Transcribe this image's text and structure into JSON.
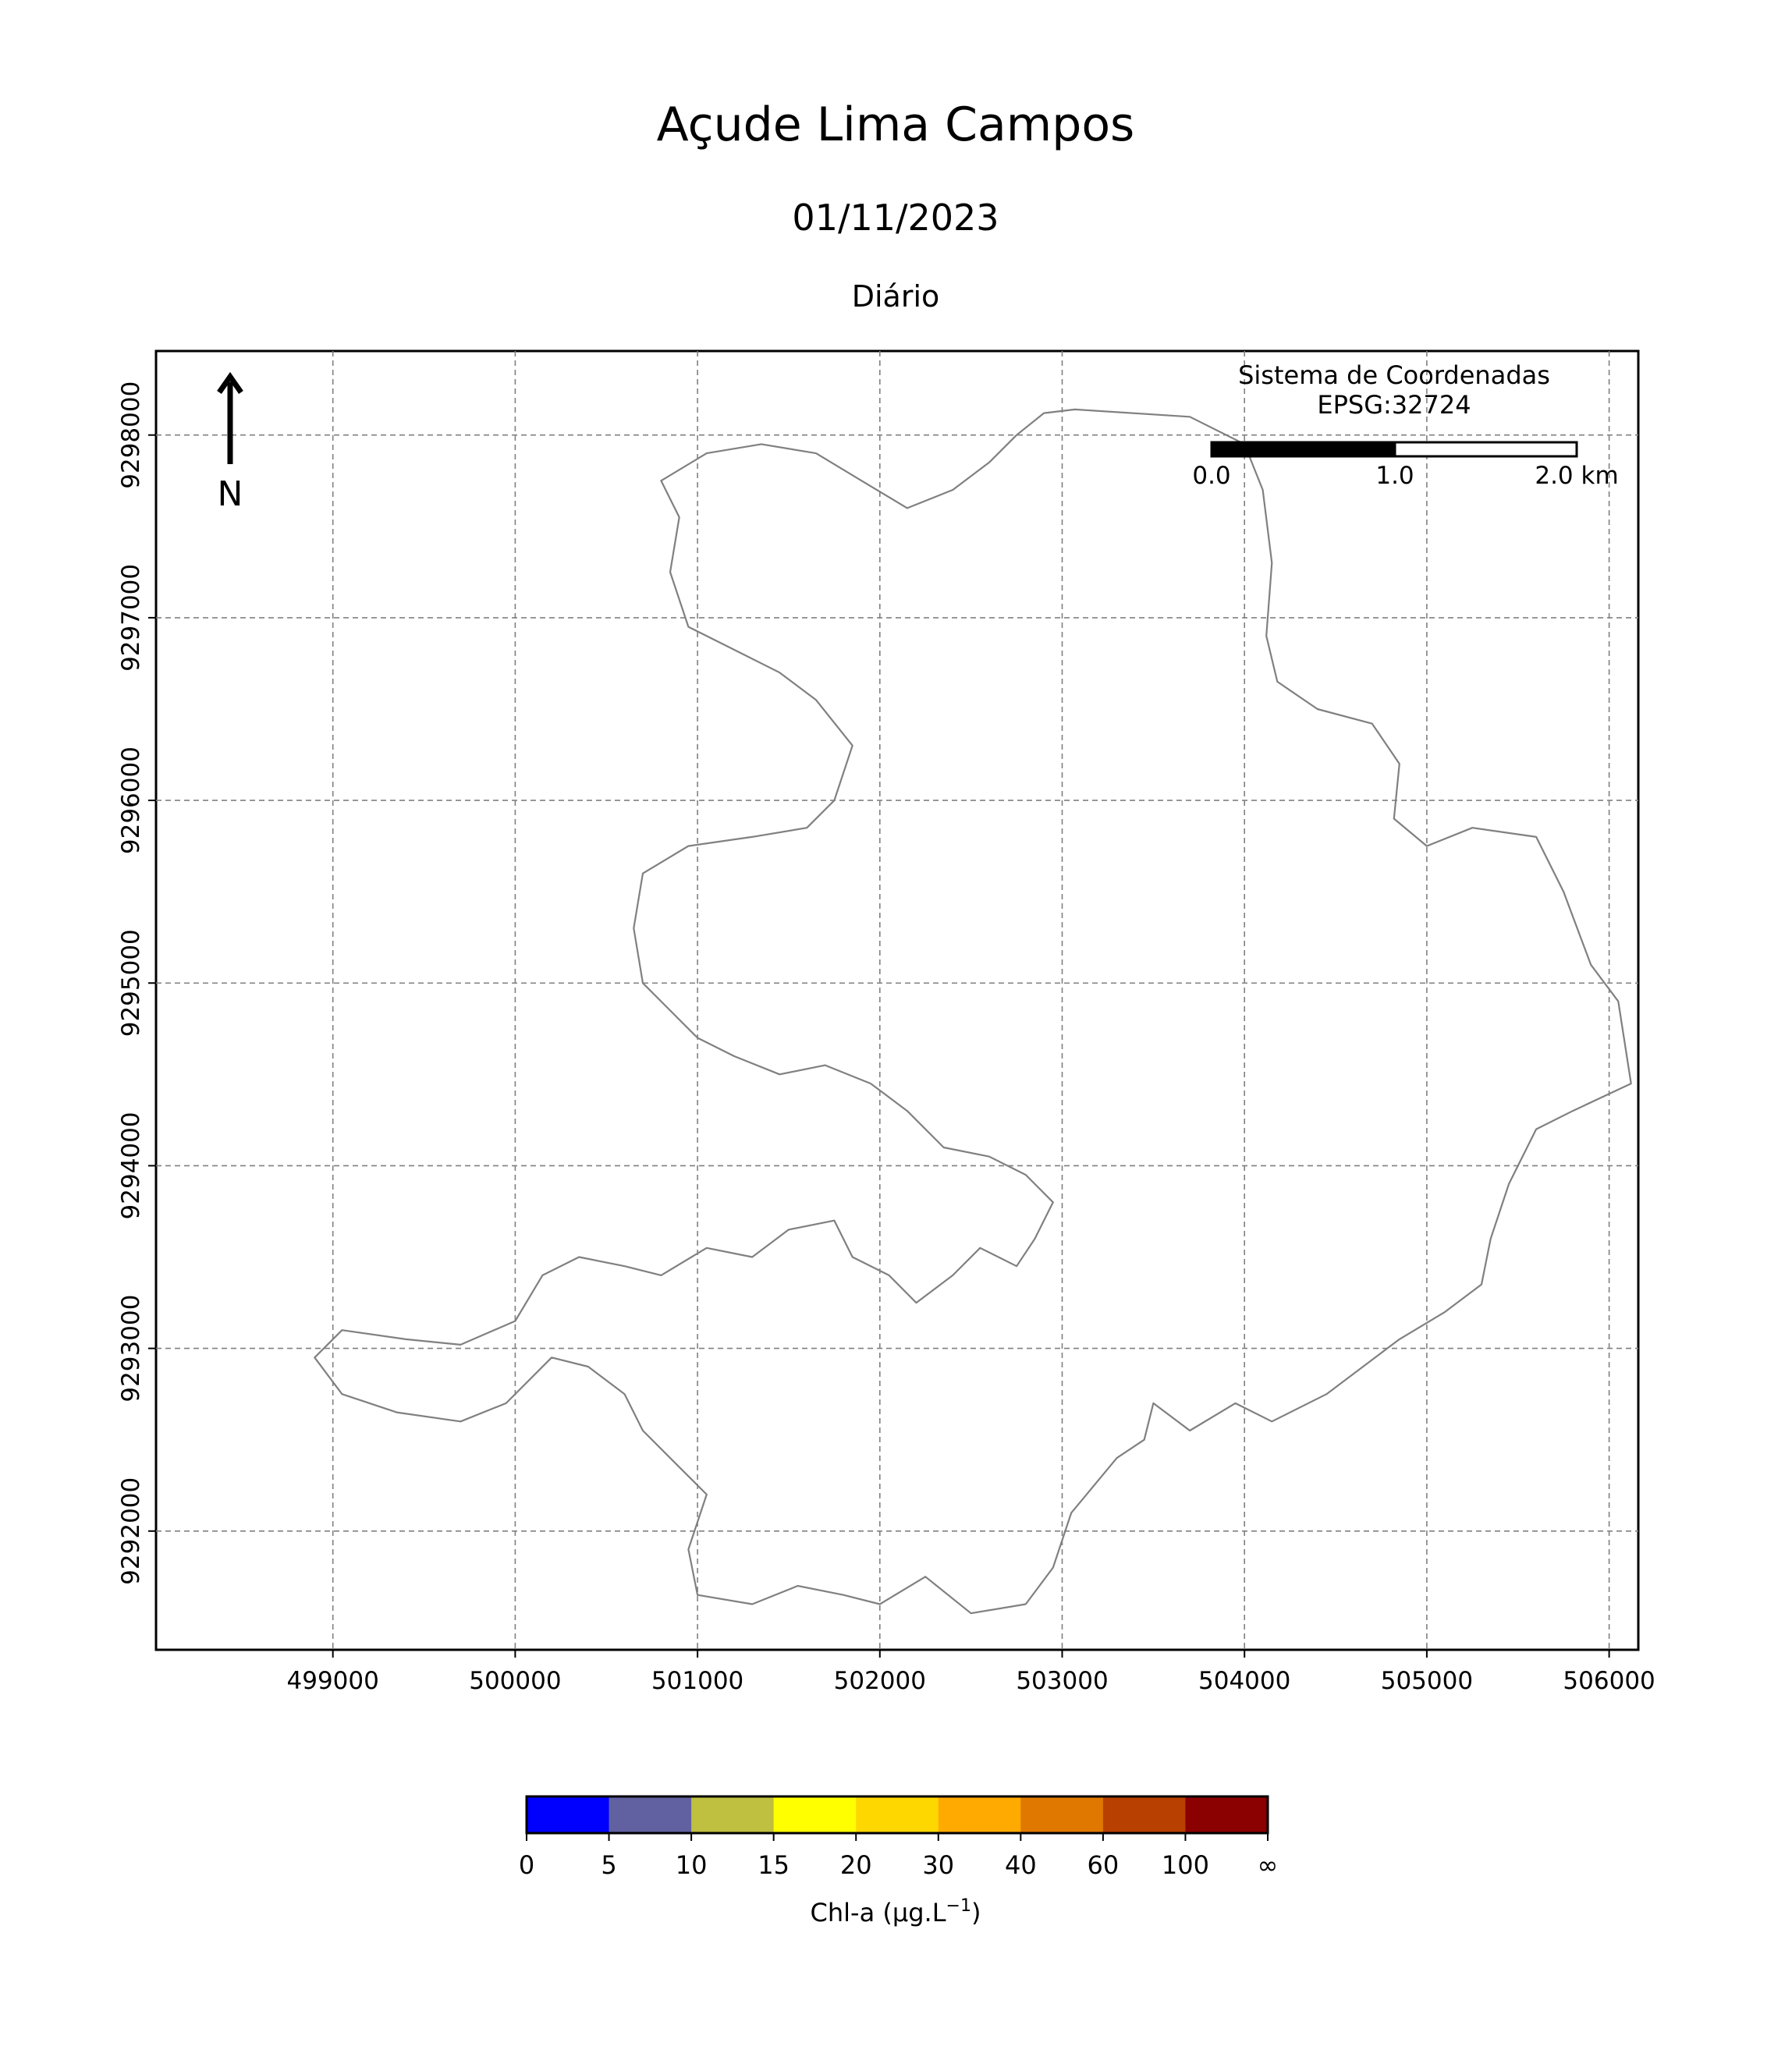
{
  "figure": {
    "title": "Açude Lima Campos",
    "date": "01/11/2023",
    "period": "Diário"
  },
  "map": {
    "crs_label_line1": "Sistema de Coordenadas",
    "crs_label_line2": "EPSG:32724",
    "north_arrow_label": "N",
    "scalebar": {
      "labels": [
        "0.0",
        "1.0",
        "2.0 km"
      ],
      "length_km": 2.0
    },
    "outline_color": "#808080",
    "grid": true,
    "grid_style": "dashed"
  },
  "chart_data": {
    "type": "map",
    "x_axis": {
      "ticks": [
        499000,
        500000,
        501000,
        502000,
        503000,
        504000,
        505000,
        506000
      ],
      "tick_labels": [
        "499000",
        "500000",
        "501000",
        "502000",
        "503000",
        "504000",
        "505000",
        "506000"
      ],
      "range": [
        498030,
        506160
      ]
    },
    "y_axis": {
      "ticks": [
        9292000,
        9293000,
        9294000,
        9295000,
        9296000,
        9297000,
        9298000
      ],
      "tick_labels": [
        "9292000",
        "9293000",
        "9294000",
        "9295000",
        "9296000",
        "9297000",
        "9298000"
      ],
      "range": [
        9291350,
        9298460
      ]
    },
    "reservoir_outline": [
      [
        503070,
        9298140
      ],
      [
        503700,
        9298100
      ],
      [
        504000,
        9297950
      ],
      [
        504100,
        9297700
      ],
      [
        504150,
        9297300
      ],
      [
        504120,
        9296900
      ],
      [
        504180,
        9296650
      ],
      [
        504400,
        9296500
      ],
      [
        504700,
        9296420
      ],
      [
        504850,
        9296200
      ],
      [
        504820,
        9295900
      ],
      [
        505000,
        9295750
      ],
      [
        505250,
        9295850
      ],
      [
        505600,
        9295800
      ],
      [
        505750,
        9295500
      ],
      [
        505900,
        9295100
      ],
      [
        506050,
        9294900
      ],
      [
        506120,
        9294450
      ],
      [
        505800,
        9294300
      ],
      [
        505600,
        9294200
      ],
      [
        505450,
        9293900
      ],
      [
        505350,
        9293600
      ],
      [
        505300,
        9293350
      ],
      [
        505100,
        9293200
      ],
      [
        504850,
        9293050
      ],
      [
        504450,
        9292750
      ],
      [
        504150,
        9292600
      ],
      [
        503950,
        9292700
      ],
      [
        503700,
        9292550
      ],
      [
        503500,
        9292700
      ],
      [
        503450,
        9292500
      ],
      [
        503300,
        9292400
      ],
      [
        503050,
        9292100
      ],
      [
        502950,
        9291800
      ],
      [
        502800,
        9291600
      ],
      [
        502500,
        9291550
      ],
      [
        502250,
        9291750
      ],
      [
        502000,
        9291600
      ],
      [
        501800,
        9291650
      ],
      [
        501550,
        9291700
      ],
      [
        501300,
        9291600
      ],
      [
        501000,
        9291650
      ],
      [
        500950,
        9291900
      ],
      [
        501050,
        9292200
      ],
      [
        500900,
        9292350
      ],
      [
        500700,
        9292550
      ],
      [
        500600,
        9292750
      ],
      [
        500400,
        9292900
      ],
      [
        500200,
        9292950
      ],
      [
        499950,
        9292700
      ],
      [
        499700,
        9292600
      ],
      [
        499350,
        9292650
      ],
      [
        499050,
        9292750
      ],
      [
        498900,
        9292950
      ],
      [
        499050,
        9293100
      ],
      [
        499400,
        9293050
      ],
      [
        499700,
        9293020
      ],
      [
        500000,
        9293150
      ],
      [
        500150,
        9293400
      ],
      [
        500350,
        9293500
      ],
      [
        500600,
        9293450
      ],
      [
        500800,
        9293400
      ],
      [
        501050,
        9293550
      ],
      [
        501300,
        9293500
      ],
      [
        501500,
        9293650
      ],
      [
        501750,
        9293700
      ],
      [
        501850,
        9293500
      ],
      [
        502050,
        9293400
      ],
      [
        502200,
        9293250
      ],
      [
        502400,
        9293400
      ],
      [
        502550,
        9293550
      ],
      [
        502750,
        9293450
      ],
      [
        502850,
        9293600
      ],
      [
        502950,
        9293800
      ],
      [
        502800,
        9293950
      ],
      [
        502600,
        9294050
      ],
      [
        502350,
        9294100
      ],
      [
        502150,
        9294300
      ],
      [
        501950,
        9294450
      ],
      [
        501700,
        9294550
      ],
      [
        501450,
        9294500
      ],
      [
        501200,
        9294600
      ],
      [
        501000,
        9294700
      ],
      [
        500850,
        9294850
      ],
      [
        500700,
        9295000
      ],
      [
        500650,
        9295300
      ],
      [
        500700,
        9295600
      ],
      [
        500950,
        9295750
      ],
      [
        501300,
        9295800
      ],
      [
        501600,
        9295850
      ],
      [
        501750,
        9296000
      ],
      [
        501850,
        9296300
      ],
      [
        501650,
        9296550
      ],
      [
        501450,
        9296700
      ],
      [
        501150,
        9296850
      ],
      [
        500950,
        9296950
      ],
      [
        500850,
        9297250
      ],
      [
        500900,
        9297550
      ],
      [
        500800,
        9297750
      ],
      [
        501050,
        9297900
      ],
      [
        501350,
        9297950
      ],
      [
        501650,
        9297900
      ],
      [
        501900,
        9297750
      ],
      [
        502150,
        9297600
      ],
      [
        502400,
        9297700
      ],
      [
        502600,
        9297850
      ],
      [
        502750,
        9298000
      ],
      [
        502900,
        9298120
      ],
      [
        503070,
        9298140
      ]
    ],
    "colorbar": {
      "label": "Chl-a (μg.L",
      "label_superscript": "−1",
      "label_suffix": ")",
      "boundaries": [
        "0",
        "5",
        "10",
        "15",
        "20",
        "30",
        "40",
        "60",
        "100",
        "∞"
      ],
      "colors": [
        "#0000ff",
        "#6161a1",
        "#bfbf40",
        "#ffff00",
        "#ffd700",
        "#ffaa00",
        "#e07800",
        "#b84000",
        "#8b0000"
      ]
    }
  }
}
